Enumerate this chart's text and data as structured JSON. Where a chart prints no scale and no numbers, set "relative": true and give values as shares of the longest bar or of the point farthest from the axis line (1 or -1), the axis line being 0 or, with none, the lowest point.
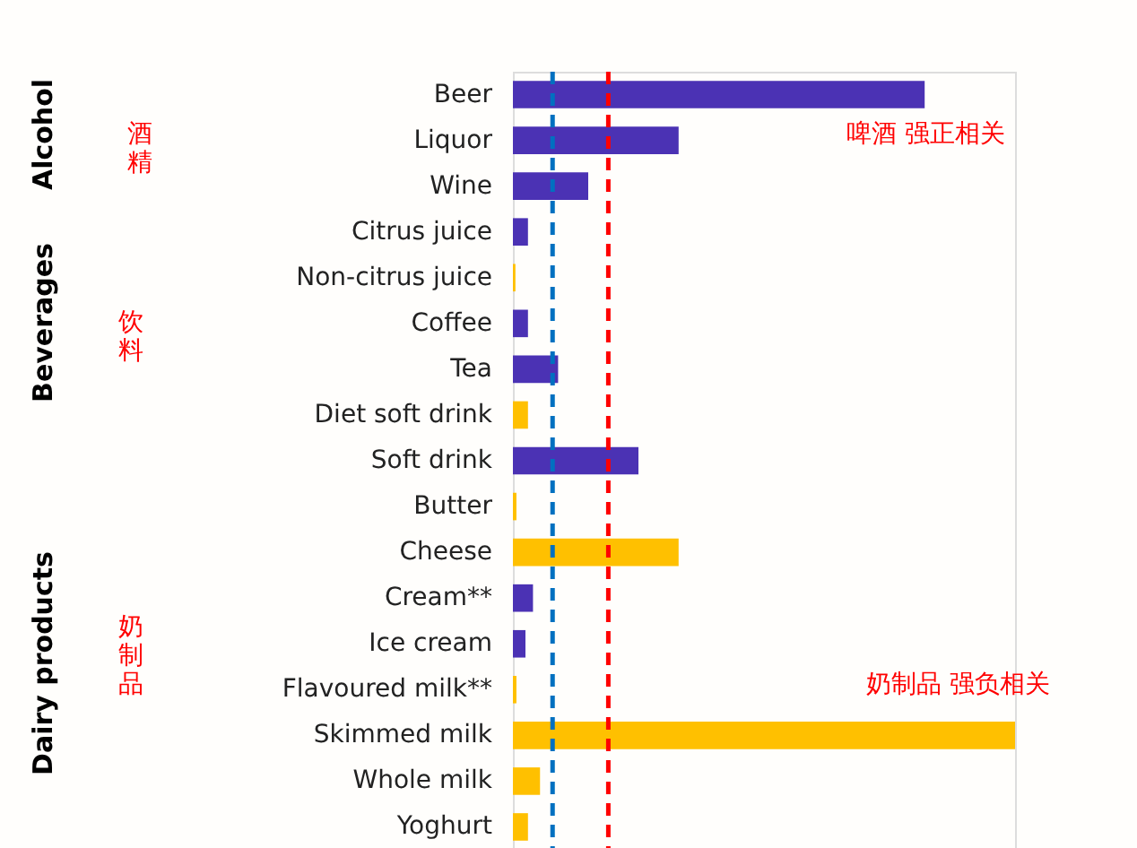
{
  "chart_data": {
    "type": "bar",
    "orientation": "horizontal",
    "relative": true,
    "categories": [
      "Beer",
      "Liquor",
      "Wine",
      "Citrus juice",
      "Non-citrus juice",
      "Coffee",
      "Tea",
      "Diet soft drink",
      "Soft drink",
      "Butter",
      "Cheese",
      "Cream**",
      "Ice cream",
      "Flavoured milk**",
      "Skimmed milk",
      "Whole milk",
      "Yoghurt"
    ],
    "values": [
      0.82,
      0.33,
      0.15,
      0.03,
      0.005,
      0.03,
      0.09,
      0.03,
      0.25,
      0.007,
      0.33,
      0.04,
      0.025,
      0.007,
      1,
      0.054,
      0.03
    ],
    "colors": [
      "#4b32b4",
      "#4b32b4",
      "#4b32b4",
      "#4b32b4",
      "#ffc000",
      "#4b32b4",
      "#4b32b4",
      "#ffc000",
      "#4b32b4",
      "#ffc000",
      "#ffc000",
      "#4b32b4",
      "#4b32b4",
      "#ffc000",
      "#ffc000",
      "#ffc000",
      "#ffc000"
    ],
    "ref_lines": [
      {
        "axis": "x",
        "value": 0.079,
        "color": "#0070c0",
        "line_style": "dashed"
      },
      {
        "axis": "x",
        "value": 0.19,
        "color": "#ff0000",
        "line_style": "dashed"
      }
    ],
    "annotations": [
      "Alcohol",
      "酒精",
      "Beverages",
      "饮料",
      "Dairy products",
      "奶制品",
      "啤酒  强正相关",
      "奶制品  强负相关"
    ]
  }
}
